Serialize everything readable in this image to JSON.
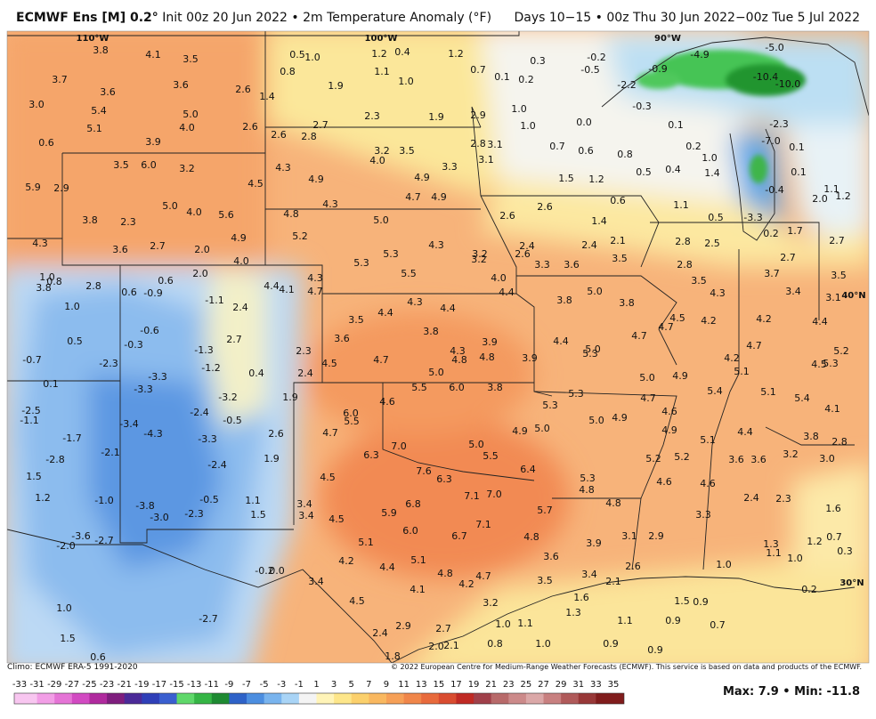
{
  "header": {
    "title": "ECMWF Ens [M] 0.2°",
    "subtitle": "Init 00z 20 Jun 2022 • 2m Temperature Anomaly (°F)",
    "period": "Days 10−15 • 00z Thu 30 Jun 2022−00z Tue 5 Jul 2022"
  },
  "map": {
    "grid_labels": [
      "110°W",
      "100°W",
      "90°W",
      "40°N",
      "30°N"
    ],
    "values": [
      "3.8",
      "4.1",
      "3.5",
      "3.7",
      "3.6",
      "3.6",
      "2.6",
      "1.4",
      "3.0",
      "5.4",
      "5.0",
      "5.1",
      "4.0",
      "2.6",
      "0.6",
      "3.9",
      "0.5",
      "1.0",
      "0.8",
      "1.2",
      "0.4",
      "1.1",
      "1.0",
      "1.9",
      "1.2",
      "0.7",
      "0.1",
      "0.2",
      "0.3",
      "-0.2",
      "-0.5",
      "-0.9",
      "-4.9",
      "-5.0",
      "-10.4",
      "-10.0",
      "-2.2",
      "-0.3",
      "2.3",
      "1.9",
      "2.9",
      "1.0",
      "1.0",
      "0.0",
      "0.1",
      "-2.3",
      "-7.0",
      "0.7",
      "0.6",
      "0.8",
      "0.2",
      "1.0",
      "0.1",
      "0.5",
      "0.4",
      "1.4",
      "0.1",
      "2.7",
      "2.6",
      "2.8",
      "3.2",
      "3.5",
      "4.0",
      "2.8",
      "3.1",
      "3.1",
      "3.3",
      "4.9",
      "4.3",
      "4.9",
      "3.5",
      "6.0",
      "3.2",
      "4.5",
      "5.9",
      "2.9",
      "1.5",
      "1.2",
      "0.6",
      "-0.4",
      "1.1",
      "2.0",
      "1.2",
      "1.1",
      "0.5",
      "-3.3",
      "4.7",
      "4.9",
      "4.3",
      "5.0",
      "4.0",
      "5.6",
      "3.8",
      "2.3",
      "4.8",
      "5.0",
      "2.6",
      "2.6",
      "1.4",
      "0.2",
      "1.7",
      "2.7",
      "4.3",
      "5.2",
      "4.9",
      "3.6",
      "2.7",
      "2.0",
      "4.0",
      "4.3",
      "2.4",
      "2.6",
      "2.4",
      "2.1",
      "2.8",
      "2.5",
      "5.3",
      "5.3",
      "3.2",
      "3.2",
      "3.3",
      "3.6",
      "3.5",
      "2.8",
      "2.7",
      "5.5",
      "4.0",
      "3.7",
      "3.5",
      "1.0",
      "0.8",
      "3.8",
      "2.8",
      "0.6",
      "-0.9",
      "0.6",
      "2.0",
      "4.4",
      "4.1",
      "4.3",
      "4.7",
      "4.4",
      "3.5",
      "4.3",
      "3.4",
      "3.1",
      "5.0",
      "3.8",
      "3.8",
      "-1.1",
      "2.4",
      "1.0",
      "4.3",
      "4.4",
      "4.4",
      "3.5",
      "4.5",
      "4.2",
      "4.2",
      "4.4",
      "4.7",
      "0.5",
      "-0.3",
      "-0.6",
      "3.8",
      "3.6",
      "2.7",
      "-1.3",
      "2.3",
      "4.4",
      "4.7",
      "3.9",
      "4.3",
      "4.8",
      "4.8",
      "5.0",
      "5.3",
      "4.7",
      "5.2",
      "-0.7",
      "-2.3",
      "-1.2",
      "0.4",
      "4.5",
      "4.7",
      "2.4",
      "3.9",
      "4.2",
      "5.1",
      "4.5",
      "5.3",
      "5.0",
      "5.0",
      "4.9",
      "-3.3",
      "0.1",
      "-3.3",
      "5.5",
      "6.0",
      "3.8",
      "5.4",
      "5.1",
      "5.4",
      "-3.2",
      "1.9",
      "4.6",
      "5.3",
      "4.7",
      "-2.5",
      "-1.1",
      "-2.4",
      "-0.5",
      "6.0",
      "5.5",
      "5.3",
      "5.0",
      "4.9",
      "4.6",
      "4.1",
      "-3.4",
      "-4.3",
      "4.7",
      "4.9",
      "5.0",
      "4.9",
      "4.4",
      "3.8",
      "2.8",
      "2.6",
      "-1.7",
      "-3.3",
      "5.1",
      "7.0",
      "5.0",
      "-2.1",
      "-2.8",
      "6.3",
      "5.5",
      "1.9",
      "3.6",
      "3.6",
      "3.2",
      "3.0",
      "5.2",
      "5.2",
      "-2.4",
      "7.6",
      "6.3",
      "6.4",
      "1.5",
      "4.5",
      "5.3",
      "4.6",
      "4.6",
      "4.8",
      "7.1",
      "7.0",
      "1.2",
      "-1.0",
      "-0.5",
      "1.1",
      "2.4",
      "2.3",
      "6.8",
      "3.4",
      "4.8",
      "-3.8",
      "-3.0",
      "-2.3",
      "1.5",
      "3.4",
      "4.5",
      "5.9",
      "5.7",
      "3.3",
      "1.6",
      "7.1",
      "6.0",
      "-3.6",
      "-2.7",
      "-2.0",
      "6.7",
      "4.8",
      "3.1",
      "2.9",
      "5.1",
      "3.9",
      "0.7",
      "1.3",
      "1.2",
      "0.3",
      "1.1",
      "1.0",
      "4.2",
      "5.1",
      "3.6",
      "4.4",
      "-0.2",
      "0.0",
      "1.0",
      "4.8",
      "4.7",
      "2.6",
      "3.4",
      "2.1",
      "3.5",
      "4.2",
      "3.4",
      "4.1",
      "0.2",
      "1.5",
      "0.9",
      "1.6",
      "3.2",
      "4.5",
      "1.0",
      "1.3",
      "1.0",
      "1.1",
      "1.1",
      "0.9",
      "0.7",
      "2.9",
      "2.7",
      "2.4",
      "-2.7",
      "1.5",
      "0.8",
      "1.0",
      "0.9",
      "0.9",
      "2.0",
      "2.1",
      "1.8",
      "0.6"
    ]
  },
  "footer": {
    "climo": "Climo: ECMWF ERA-5 1991-2020",
    "copyright": "© 2022 European Centre for Medium-Range Weather Forecasts (ECMWF). This service is based on data and products of the ECMWF."
  },
  "colorbar": {
    "labels": [
      "-33",
      "-31",
      "-29",
      "-27",
      "-25",
      "-23",
      "-21",
      "-19",
      "-17",
      "-15",
      "-13",
      "-11",
      "-9",
      "-7",
      "-5",
      "-3",
      "-1",
      "1",
      "3",
      "5",
      "7",
      "9",
      "11",
      "13",
      "15",
      "17",
      "19",
      "21",
      "23",
      "25",
      "27",
      "29",
      "31",
      "33",
      "35"
    ],
    "colors": [
      "#f8c6f0",
      "#f29ee6",
      "#e574d6",
      "#d24ac2",
      "#b02a9e",
      "#7f1e7e",
      "#4b2a98",
      "#2f3fb8",
      "#3a5fd0",
      "#5fd86a",
      "#35b545",
      "#1e8a32",
      "#2e62c8",
      "#4c8ee0",
      "#79b4ee",
      "#a9d4f6",
      "#f4f4f4",
      "#fff4b8",
      "#fde68a",
      "#fbd06c",
      "#f9b860",
      "#f6a057",
      "#f0864a",
      "#e86a3c",
      "#d94c30",
      "#c02a24",
      "#a0404a",
      "#b86a6a",
      "#cc8a8a",
      "#dba8a8",
      "#c88080",
      "#b05a5a",
      "#983838",
      "#801c1c"
    ]
  },
  "stats": "Max: 7.9 • Min: -11.8"
}
